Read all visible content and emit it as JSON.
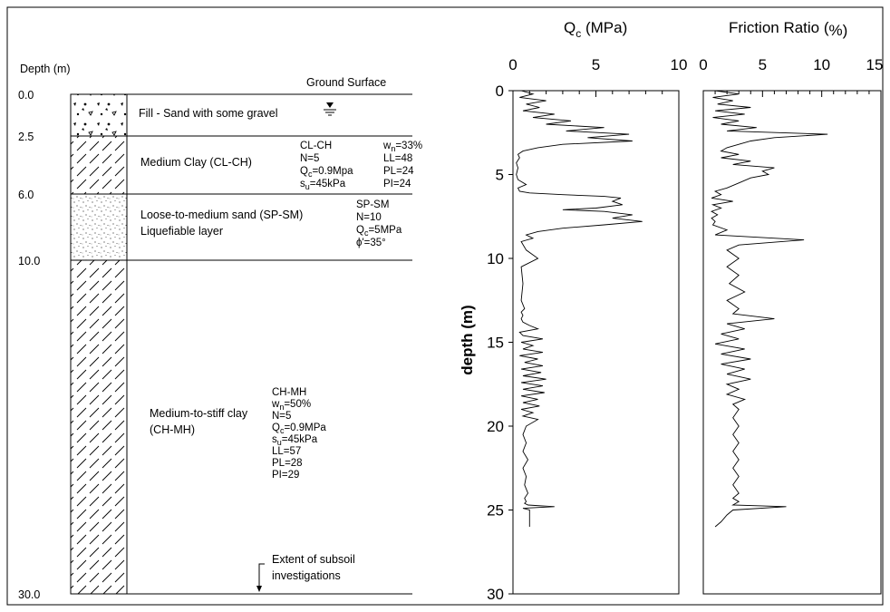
{
  "chart_data": [
    {
      "type": "other",
      "title": "",
      "ylabel": "Depth (m)",
      "ground_surface_label": "Ground Surface",
      "depth_ticks": [
        "0.0",
        "2.5",
        "6.0",
        "10.0",
        "30.0"
      ],
      "layers": [
        {
          "top": 0.0,
          "bottom": 2.5,
          "name": "Fill - Sand with some gravel",
          "pattern": "gravel",
          "props_a": [],
          "props_b": []
        },
        {
          "top": 2.5,
          "bottom": 6.0,
          "name": "Medium Clay (CL-CH)",
          "pattern": "clay",
          "props_a": [
            "CL-CH",
            "N=5",
            "Qc=0.9Mpa",
            "su=45kPa"
          ],
          "props_b": [
            "wn=33%",
            "LL=48",
            "PL=24",
            "PI=24"
          ]
        },
        {
          "top": 6.0,
          "bottom": 10.0,
          "name": "Loose-to-medium sand (SP-SM)",
          "name2": "Liquefiable layer",
          "pattern": "sand",
          "props_a": [
            "SP-SM",
            "N=10",
            "Qc=5MPa",
            "ϕ'=35°"
          ],
          "props_b": []
        },
        {
          "top": 10.0,
          "bottom": 30.0,
          "name": "Medium-to-stiff clay",
          "name2": "(CH-MH)",
          "pattern": "clay",
          "props_a": [
            "CH-MH",
            "wn=50%",
            "N=5",
            "Qc=0.9MPa",
            "su=45kPa",
            "LL=57",
            "PL=28",
            "PI=29"
          ],
          "props_b": []
        }
      ],
      "extent_label": [
        "Extent of subsoil",
        "investigations"
      ]
    },
    {
      "type": "line",
      "title": "Qc (MPa)",
      "ylabel": "depth (m)",
      "xlim": [
        0,
        10
      ],
      "ylim": [
        0,
        30
      ],
      "x_ticks": [
        "0",
        "5",
        "10"
      ],
      "y_ticks": [
        "0",
        "5",
        "10",
        "15",
        "20",
        "25",
        "30"
      ],
      "series": [
        {
          "x": [
            0.5,
            1.2,
            0.4,
            2.0,
            0.8,
            1.6,
            0.6,
            2.5,
            1.2,
            3.5,
            2.0,
            5.5,
            3.2,
            7.0,
            4.5,
            7.2,
            3.0,
            1.5,
            0.6,
            0.3,
            0.4,
            0.2,
            0.3,
            0.2,
            0.3,
            0.8,
            0.3,
            0.4,
            1.0,
            3.0,
            5.5,
            6.5,
            6.0,
            6.6,
            5.0,
            3.0,
            5.5,
            7.2,
            6.0,
            7.8,
            5.5,
            3.0,
            1.5,
            0.8,
            1.2,
            0.5,
            0.8,
            1.5,
            0.5,
            0.6,
            0.5,
            0.7,
            0.5,
            0.6,
            0.5,
            0.6,
            1.0,
            1.5,
            0.4,
            0.6,
            1.8,
            0.5,
            1.2,
            0.6,
            1.8,
            0.4,
            1.5,
            0.7,
            1.8,
            0.5,
            1.7,
            0.6,
            2.0,
            0.5,
            1.8,
            0.6,
            1.9,
            0.5,
            1.5,
            0.6,
            1.6,
            0.5,
            1.2,
            0.6,
            1.5,
            0.8,
            0.6,
            0.8,
            0.6,
            0.9,
            0.6,
            0.8,
            0.7,
            0.9,
            0.7,
            0.8,
            0.7,
            0.9,
            2.5,
            0.6,
            1.0,
            1.0
          ],
          "y": [
            0.0,
            0.2,
            0.4,
            0.6,
            0.8,
            1.0,
            1.2,
            1.4,
            1.6,
            1.8,
            2.0,
            2.2,
            2.4,
            2.6,
            2.8,
            3.0,
            3.2,
            3.4,
            3.6,
            3.8,
            4.0,
            4.3,
            4.6,
            5.0,
            5.3,
            5.6,
            5.8,
            6.0,
            6.1,
            6.2,
            6.3,
            6.4,
            6.6,
            6.8,
            7.0,
            7.1,
            7.2,
            7.4,
            7.6,
            7.8,
            8.0,
            8.2,
            8.4,
            8.6,
            8.8,
            9.0,
            9.5,
            10.0,
            10.5,
            11.5,
            12.5,
            13.0,
            13.2,
            13.4,
            13.6,
            13.8,
            14.0,
            14.2,
            14.4,
            14.6,
            14.8,
            15.0,
            15.2,
            15.4,
            15.6,
            15.8,
            16.0,
            16.2,
            16.4,
            16.6,
            16.8,
            17.0,
            17.2,
            17.4,
            17.6,
            17.8,
            18.0,
            18.2,
            18.4,
            18.6,
            18.8,
            19.0,
            19.2,
            19.4,
            19.6,
            20.0,
            20.5,
            21.0,
            21.5,
            22.0,
            22.5,
            23.0,
            23.5,
            24.0,
            24.3,
            24.5,
            24.6,
            24.7,
            24.8,
            24.9,
            25.0,
            26.0
          ]
        }
      ]
    },
    {
      "type": "line",
      "title": "Friction Ratio (%)",
      "xlim": [
        0,
        15
      ],
      "ylim": [
        0,
        30
      ],
      "x_ticks": [
        "0",
        "5",
        "10",
        "15"
      ],
      "series": [
        {
          "x": [
            1.0,
            3.0,
            0.8,
            2.5,
            1.2,
            4.0,
            1.0,
            3.5,
            0.8,
            3.0,
            1.5,
            4.5,
            2.0,
            10.5,
            6.0,
            4.0,
            3.0,
            2.0,
            1.5,
            3.0,
            1.5,
            4.0,
            2.5,
            6.0,
            5.0,
            5.5,
            4.0,
            3.0,
            2.0,
            1.0,
            1.5,
            0.7,
            2.5,
            0.8,
            1.5,
            0.7,
            1.2,
            0.7,
            1.0,
            0.8,
            2.0,
            1.0,
            8.5,
            3.0,
            2.0,
            3.0,
            2.0,
            3.0,
            2.2,
            3.5,
            2.0,
            3.0,
            2.5,
            6.0,
            2.0,
            3.5,
            1.5,
            3.0,
            1.0,
            3.5,
            1.5,
            4.0,
            1.5,
            3.5,
            2.0,
            4.0,
            2.0,
            3.0,
            2.0,
            3.5,
            2.5,
            3.0,
            2.5,
            3.0,
            2.5,
            3.0,
            2.5,
            3.0,
            2.5,
            3.0,
            2.5,
            3.0,
            2.5,
            3.0,
            2.5,
            7.0,
            2.5,
            2.0,
            1.5,
            1.0
          ],
          "y": [
            0.0,
            0.2,
            0.4,
            0.6,
            0.8,
            1.0,
            1.2,
            1.4,
            1.6,
            1.8,
            2.0,
            2.2,
            2.4,
            2.6,
            2.8,
            3.0,
            3.2,
            3.4,
            3.6,
            3.8,
            4.0,
            4.2,
            4.4,
            4.6,
            4.8,
            5.0,
            5.2,
            5.5,
            5.8,
            6.0,
            6.2,
            6.4,
            6.6,
            6.8,
            7.0,
            7.2,
            7.4,
            7.6,
            7.8,
            8.0,
            8.3,
            8.6,
            8.9,
            9.2,
            9.5,
            10.0,
            10.5,
            11.0,
            11.5,
            12.0,
            12.5,
            13.0,
            13.3,
            13.6,
            13.9,
            14.2,
            14.5,
            14.8,
            15.1,
            15.4,
            15.7,
            16.0,
            16.3,
            16.6,
            16.9,
            17.2,
            17.5,
            17.8,
            18.1,
            18.4,
            18.7,
            19.0,
            19.5,
            20.0,
            20.5,
            21.0,
            21.5,
            22.0,
            22.5,
            23.0,
            23.5,
            24.0,
            24.3,
            24.5,
            24.7,
            24.8,
            25.0,
            25.3,
            25.7,
            26.0
          ]
        }
      ]
    }
  ],
  "qc_axis": {
    "title_main": "Q",
    "title_sub": "c",
    "title_rest": " (MPa)"
  },
  "fr_axis": {
    "title_main": "Friction Ratio (",
    "title_last": "%)"
  }
}
